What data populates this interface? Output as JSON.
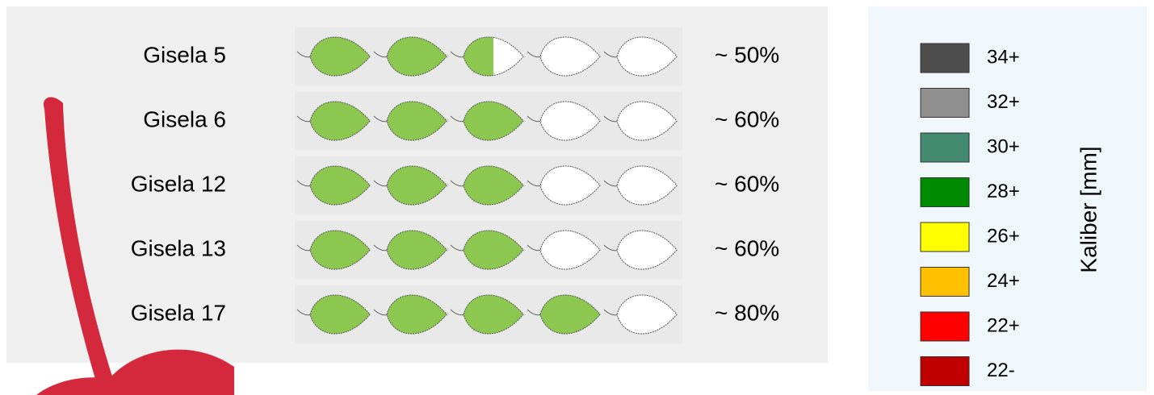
{
  "rows": [
    {
      "name": "Gisela 5",
      "value": 50,
      "value_label": "~ 50%"
    },
    {
      "name": "Gisela 6",
      "value": 60,
      "value_label": "~ 60%"
    },
    {
      "name": "Gisela 12",
      "value": 60,
      "value_label": "~ 60%"
    },
    {
      "name": "Gisela 13",
      "value": 60,
      "value_label": "~ 60%"
    },
    {
      "name": "Gisela 17",
      "value": 80,
      "value_label": "~ 80%"
    }
  ],
  "leaf_color": "#8cc850",
  "legend": {
    "title": "Kaliber [mm]",
    "items": [
      {
        "label": "34+",
        "color": "#4d4d4d"
      },
      {
        "label": "32+",
        "color": "#8f8f8f"
      },
      {
        "label": "30+",
        "color": "#448a70"
      },
      {
        "label": "28+",
        "color": "#008a00"
      },
      {
        "label": "26+",
        "color": "#ffff00"
      },
      {
        "label": "24+",
        "color": "#ffc000"
      },
      {
        "label": "22+",
        "color": "#ff0000"
      },
      {
        "label": "22-",
        "color": "#c00000"
      }
    ]
  }
}
